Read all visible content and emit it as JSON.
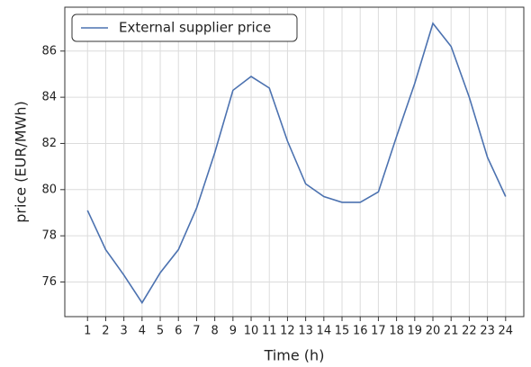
{
  "chart_data": {
    "type": "line",
    "x_label": "Time (h)",
    "y_label": "price (EUR/MWh)",
    "x": [
      1,
      2,
      3,
      4,
      5,
      6,
      7,
      8,
      9,
      10,
      11,
      12,
      13,
      14,
      15,
      16,
      17,
      18,
      19,
      20,
      21,
      22,
      23,
      24
    ],
    "series": [
      {
        "name": "External supplier price",
        "color": "#4c72b0",
        "values": [
          79.1,
          77.4,
          76.3,
          75.1,
          76.4,
          77.4,
          79.2,
          81.6,
          84.3,
          84.9,
          84.4,
          82.1,
          80.25,
          79.7,
          79.45,
          79.45,
          79.9,
          82.3,
          84.6,
          87.2,
          86.2,
          84.0,
          81.4,
          79.7
        ]
      }
    ],
    "xlim": [
      -0.25,
      25.0
    ],
    "ylim": [
      74.5,
      87.9
    ],
    "xticks": [
      1,
      2,
      3,
      4,
      5,
      6,
      7,
      8,
      9,
      10,
      11,
      12,
      13,
      14,
      15,
      16,
      17,
      18,
      19,
      20,
      21,
      22,
      23,
      24
    ],
    "yticks": [
      76,
      78,
      80,
      82,
      84,
      86
    ],
    "grid": true,
    "legend": "upper left"
  }
}
